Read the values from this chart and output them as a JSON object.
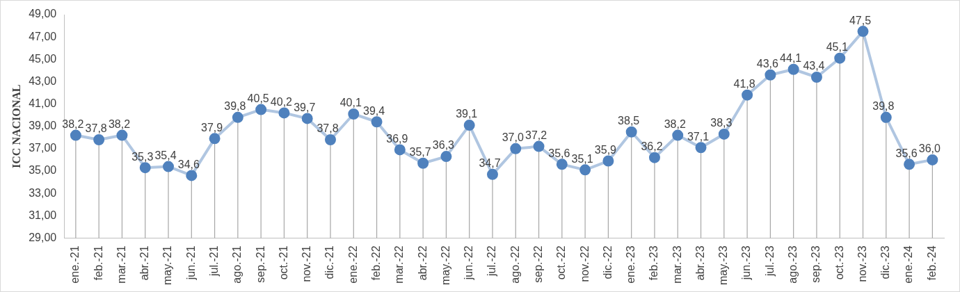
{
  "chart_data": {
    "type": "line",
    "ylabel": "ICC NACIONAL",
    "categories": [
      "ene.-21",
      "feb.-21",
      "mar.-21",
      "abr.-21",
      "may.-21",
      "jun.-21",
      "jul.-21",
      "ago.-21",
      "sep.-21",
      "oct.-21",
      "nov.-21",
      "dic.-21",
      "ene.-22",
      "feb.-22",
      "mar.-22",
      "abr.-22",
      "may.-22",
      "jun.-22",
      "jul.-22",
      "ago.-22",
      "sep.-22",
      "oct.-22",
      "nov.-22",
      "dic.-22",
      "ene.-23",
      "feb.-23",
      "mar.-23",
      "abr.-23",
      "may.-23",
      "jun.-23",
      "jul.-23",
      "ago.-23",
      "sep.-23",
      "oct.-23",
      "nov.-23",
      "dic.-23",
      "ene.-24",
      "feb.-24"
    ],
    "series": [
      {
        "color": "#4f81bd",
        "values": [
          38.2,
          37.8,
          38.2,
          35.3,
          35.4,
          34.6,
          37.9,
          39.8,
          40.5,
          40.2,
          39.7,
          37.8,
          40.1,
          39.4,
          36.9,
          35.7,
          36.3,
          39.1,
          34.7,
          37.0,
          37.2,
          35.6,
          35.1,
          35.9,
          38.5,
          36.2,
          38.2,
          37.1,
          38.3,
          41.8,
          43.6,
          44.1,
          43.4,
          45.1,
          47.5,
          39.8,
          35.6,
          36.0
        ],
        "value_labels": [
          "38,2",
          "37,8",
          "38,2",
          "35,3",
          "35,4",
          "34,6",
          "37,9",
          "39,8",
          "40,5",
          "40,2",
          "39,7",
          "37,8",
          "40,1",
          "39,4",
          "36,9",
          "35,7",
          "36,3",
          "39,1",
          "34,7",
          "37,0",
          "37,2",
          "35,6",
          "35,1",
          "35,9",
          "38,5",
          "36,2",
          "38,2",
          "37,1",
          "38,3",
          "41,8",
          "43,6",
          "44,1",
          "43,4",
          "45,1",
          "47,5",
          "39,8",
          "35,6",
          "36,0"
        ]
      }
    ],
    "ylim": [
      29,
      49
    ],
    "yticks": [
      {
        "value": 29,
        "label": "29,00"
      },
      {
        "value": 31,
        "label": "31,00"
      },
      {
        "value": 33,
        "label": "33,00"
      },
      {
        "value": 35,
        "label": "35,00"
      },
      {
        "value": 37,
        "label": "37,00"
      },
      {
        "value": 39,
        "label": "39,00"
      },
      {
        "value": 41,
        "label": "41,00"
      },
      {
        "value": 43,
        "label": "43,00"
      },
      {
        "value": 45,
        "label": "45,00"
      },
      {
        "value": 47,
        "label": "47,00"
      },
      {
        "value": 49,
        "label": "49,00"
      }
    ],
    "grid": "x",
    "legend": false,
    "marker": "circle",
    "line_style": "solid"
  }
}
